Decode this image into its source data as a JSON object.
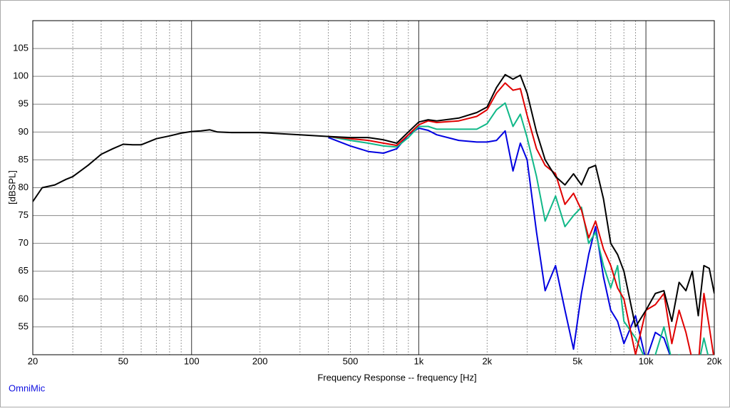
{
  "chart_data": {
    "type": "line",
    "x_label": "Frequency Response -- frequency [Hz]",
    "y_label": "[dBSPL]",
    "footer": "OmniMic",
    "x_log": true,
    "grid": true,
    "xlim": [
      20,
      20000
    ],
    "ylim": [
      50,
      110
    ],
    "xticks": [
      20,
      50,
      100,
      200,
      500,
      {
        "value": 1000,
        "label": "1k"
      },
      {
        "value": 2000,
        "label": "2k"
      },
      {
        "value": 5000,
        "label": "5k"
      },
      {
        "value": 10000,
        "label": "10k"
      },
      {
        "value": 20000,
        "label": "20k"
      }
    ],
    "yticks": [
      55,
      60,
      65,
      70,
      75,
      80,
      85,
      90,
      95,
      100,
      105
    ],
    "x": [
      20,
      22,
      25,
      28,
      30,
      35,
      40,
      45,
      50,
      55,
      60,
      70,
      80,
      90,
      100,
      110,
      120,
      130,
      150,
      200,
      300,
      400,
      500,
      600,
      700,
      800,
      900,
      1000,
      1100,
      1200,
      1500,
      1800,
      2000,
      2200,
      2400,
      2600,
      2800,
      3000,
      3300,
      3600,
      4000,
      4400,
      4800,
      5200,
      5600,
      6000,
      6500,
      7000,
      7500,
      8000,
      9000,
      10000,
      11000,
      12000,
      13000,
      14000,
      15000,
      16000,
      17000,
      18000,
      19000,
      20000
    ],
    "series": [
      {
        "color": "#0000e0",
        "values": [
          null,
          null,
          null,
          null,
          null,
          null,
          null,
          null,
          null,
          null,
          null,
          null,
          null,
          null,
          null,
          null,
          null,
          null,
          null,
          null,
          null,
          89,
          87.5,
          86.5,
          86.2,
          87,
          89.5,
          90.7,
          90.3,
          89.5,
          88.5,
          88.2,
          88.2,
          88.5,
          90.2,
          83,
          88,
          85,
          72,
          61.5,
          66,
          58,
          51,
          61,
          68,
          73,
          64,
          58,
          56,
          52,
          57,
          49,
          54,
          53,
          49,
          48,
          48,
          48,
          48,
          48,
          48,
          48
        ]
      },
      {
        "color": "#10b888",
        "values": [
          null,
          null,
          null,
          null,
          null,
          null,
          null,
          null,
          null,
          null,
          null,
          null,
          null,
          null,
          null,
          null,
          null,
          null,
          null,
          null,
          null,
          89.2,
          88.5,
          88,
          87.5,
          87.3,
          89,
          91,
          91,
          90.5,
          90.5,
          90.5,
          91.5,
          94,
          95.2,
          91,
          93.2,
          89,
          82,
          74,
          78.5,
          73,
          75,
          76.5,
          70,
          72,
          66,
          62,
          66,
          56,
          53,
          49,
          50,
          55,
          49,
          50,
          49,
          48,
          48,
          53,
          49,
          49
        ]
      },
      {
        "color": "#e00000",
        "values": [
          null,
          null,
          null,
          null,
          null,
          null,
          null,
          null,
          null,
          null,
          null,
          null,
          null,
          null,
          null,
          null,
          null,
          null,
          null,
          null,
          null,
          89.2,
          88.8,
          88.5,
          88.0,
          87.6,
          89.5,
          91.3,
          92,
          91.7,
          92,
          92.8,
          94,
          97,
          98.8,
          97.5,
          97.8,
          93,
          87,
          84,
          82.5,
          77,
          79,
          76,
          71,
          74,
          69,
          66,
          62,
          60,
          50,
          58,
          59,
          61,
          52,
          58,
          54,
          49,
          48,
          61,
          55,
          49
        ]
      },
      {
        "color": "#000000",
        "values": [
          77.5,
          80,
          80.5,
          81.5,
          82,
          84,
          86,
          87,
          87.8,
          87.7,
          87.7,
          88.8,
          89.3,
          89.8,
          90.1,
          90.2,
          90.4,
          90,
          89.9,
          89.9,
          89.5,
          89.2,
          89.0,
          89.0,
          88.6,
          88.0,
          90,
          91.8,
          92.2,
          92,
          92.5,
          93.5,
          94.5,
          98,
          100.3,
          99.5,
          100.2,
          97,
          90,
          85,
          82,
          80.5,
          82.5,
          80.5,
          83.5,
          84,
          78,
          70,
          68,
          65,
          55,
          58,
          61,
          61.5,
          56,
          63,
          61.5,
          65,
          57,
          66,
          65.5,
          61
        ]
      }
    ]
  }
}
